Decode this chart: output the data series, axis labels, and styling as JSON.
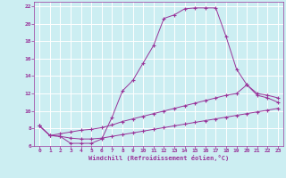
{
  "xlabel": "Windchill (Refroidissement éolien,°C)",
  "bg_color": "#cceef2",
  "grid_color": "#ffffff",
  "line_color": "#993399",
  "xlim": [
    -0.5,
    23.5
  ],
  "ylim": [
    6,
    22.5
  ],
  "xticks": [
    0,
    1,
    2,
    3,
    4,
    5,
    6,
    7,
    8,
    9,
    10,
    11,
    12,
    13,
    14,
    15,
    16,
    17,
    18,
    19,
    20,
    21,
    22,
    23
  ],
  "yticks": [
    6,
    8,
    10,
    12,
    14,
    16,
    18,
    20,
    22
  ],
  "line1_x": [
    0,
    1,
    2,
    3,
    4,
    5,
    6,
    7,
    8,
    9,
    10,
    11,
    12,
    13,
    14,
    15,
    16,
    17,
    18,
    19,
    20,
    21,
    22,
    23
  ],
  "line1_y": [
    8.3,
    7.2,
    7.1,
    6.3,
    6.3,
    6.3,
    6.8,
    9.3,
    12.3,
    13.5,
    15.5,
    17.5,
    20.6,
    21.0,
    21.7,
    21.8,
    21.8,
    21.8,
    18.5,
    14.8,
    13.0,
    11.8,
    11.5,
    11.0
  ],
  "line2_x": [
    0,
    1,
    2,
    3,
    4,
    5,
    6,
    7,
    8,
    9,
    10,
    11,
    12,
    13,
    14,
    15,
    16,
    17,
    18,
    19,
    20,
    21,
    22,
    23
  ],
  "line2_y": [
    8.3,
    7.2,
    7.4,
    7.6,
    7.8,
    7.9,
    8.1,
    8.4,
    8.8,
    9.1,
    9.4,
    9.7,
    10.0,
    10.3,
    10.6,
    10.9,
    11.2,
    11.5,
    11.8,
    12.0,
    13.0,
    12.0,
    11.8,
    11.5
  ],
  "line3_x": [
    0,
    1,
    2,
    3,
    4,
    5,
    6,
    7,
    8,
    9,
    10,
    11,
    12,
    13,
    14,
    15,
    16,
    17,
    18,
    19,
    20,
    21,
    22,
    23
  ],
  "line3_y": [
    8.3,
    7.2,
    7.1,
    6.9,
    6.8,
    6.8,
    6.9,
    7.1,
    7.3,
    7.5,
    7.7,
    7.9,
    8.1,
    8.3,
    8.5,
    8.7,
    8.9,
    9.1,
    9.3,
    9.5,
    9.7,
    9.9,
    10.1,
    10.3
  ]
}
